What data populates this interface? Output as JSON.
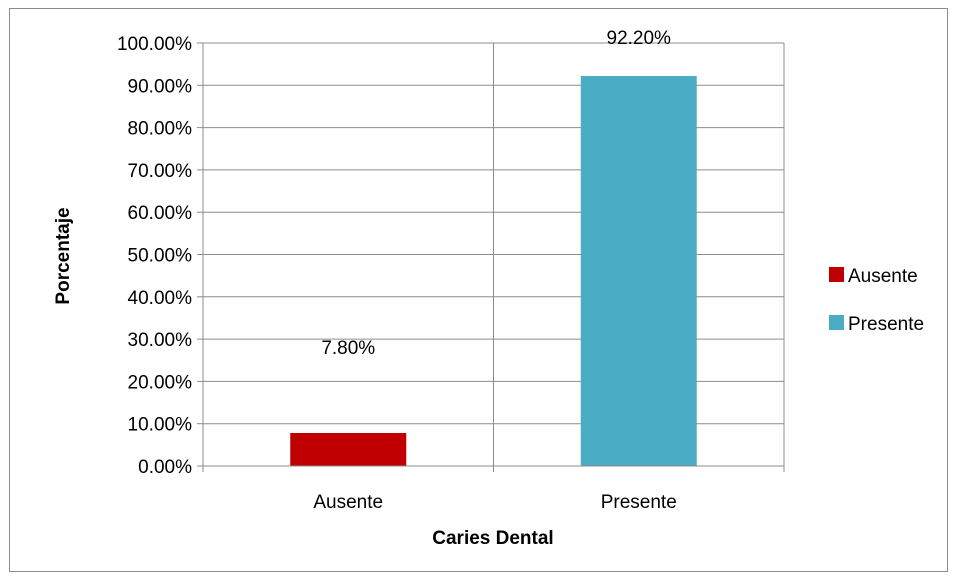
{
  "chart_data": {
    "type": "bar",
    "categories": [
      "Ausente",
      "Presente"
    ],
    "values": [
      7.8,
      92.2
    ],
    "data_labels": [
      "7.80%",
      "92.20%"
    ],
    "colors": [
      "#c00000",
      "#4bacc6"
    ],
    "xlabel": "Caries Dental",
    "ylabel": "Porcentaje",
    "ylim": [
      0,
      100
    ],
    "yticks": [
      0,
      10,
      20,
      30,
      40,
      50,
      60,
      70,
      80,
      90,
      100
    ],
    "ytick_labels": [
      "0.00%",
      "10.00%",
      "20.00%",
      "30.00%",
      "40.00%",
      "50.00%",
      "60.00%",
      "70.00%",
      "80.00%",
      "90.00%",
      "100.00%"
    ],
    "grid": true,
    "legend": {
      "placement": "right",
      "entries": [
        "Ausente",
        "Presente"
      ]
    }
  }
}
